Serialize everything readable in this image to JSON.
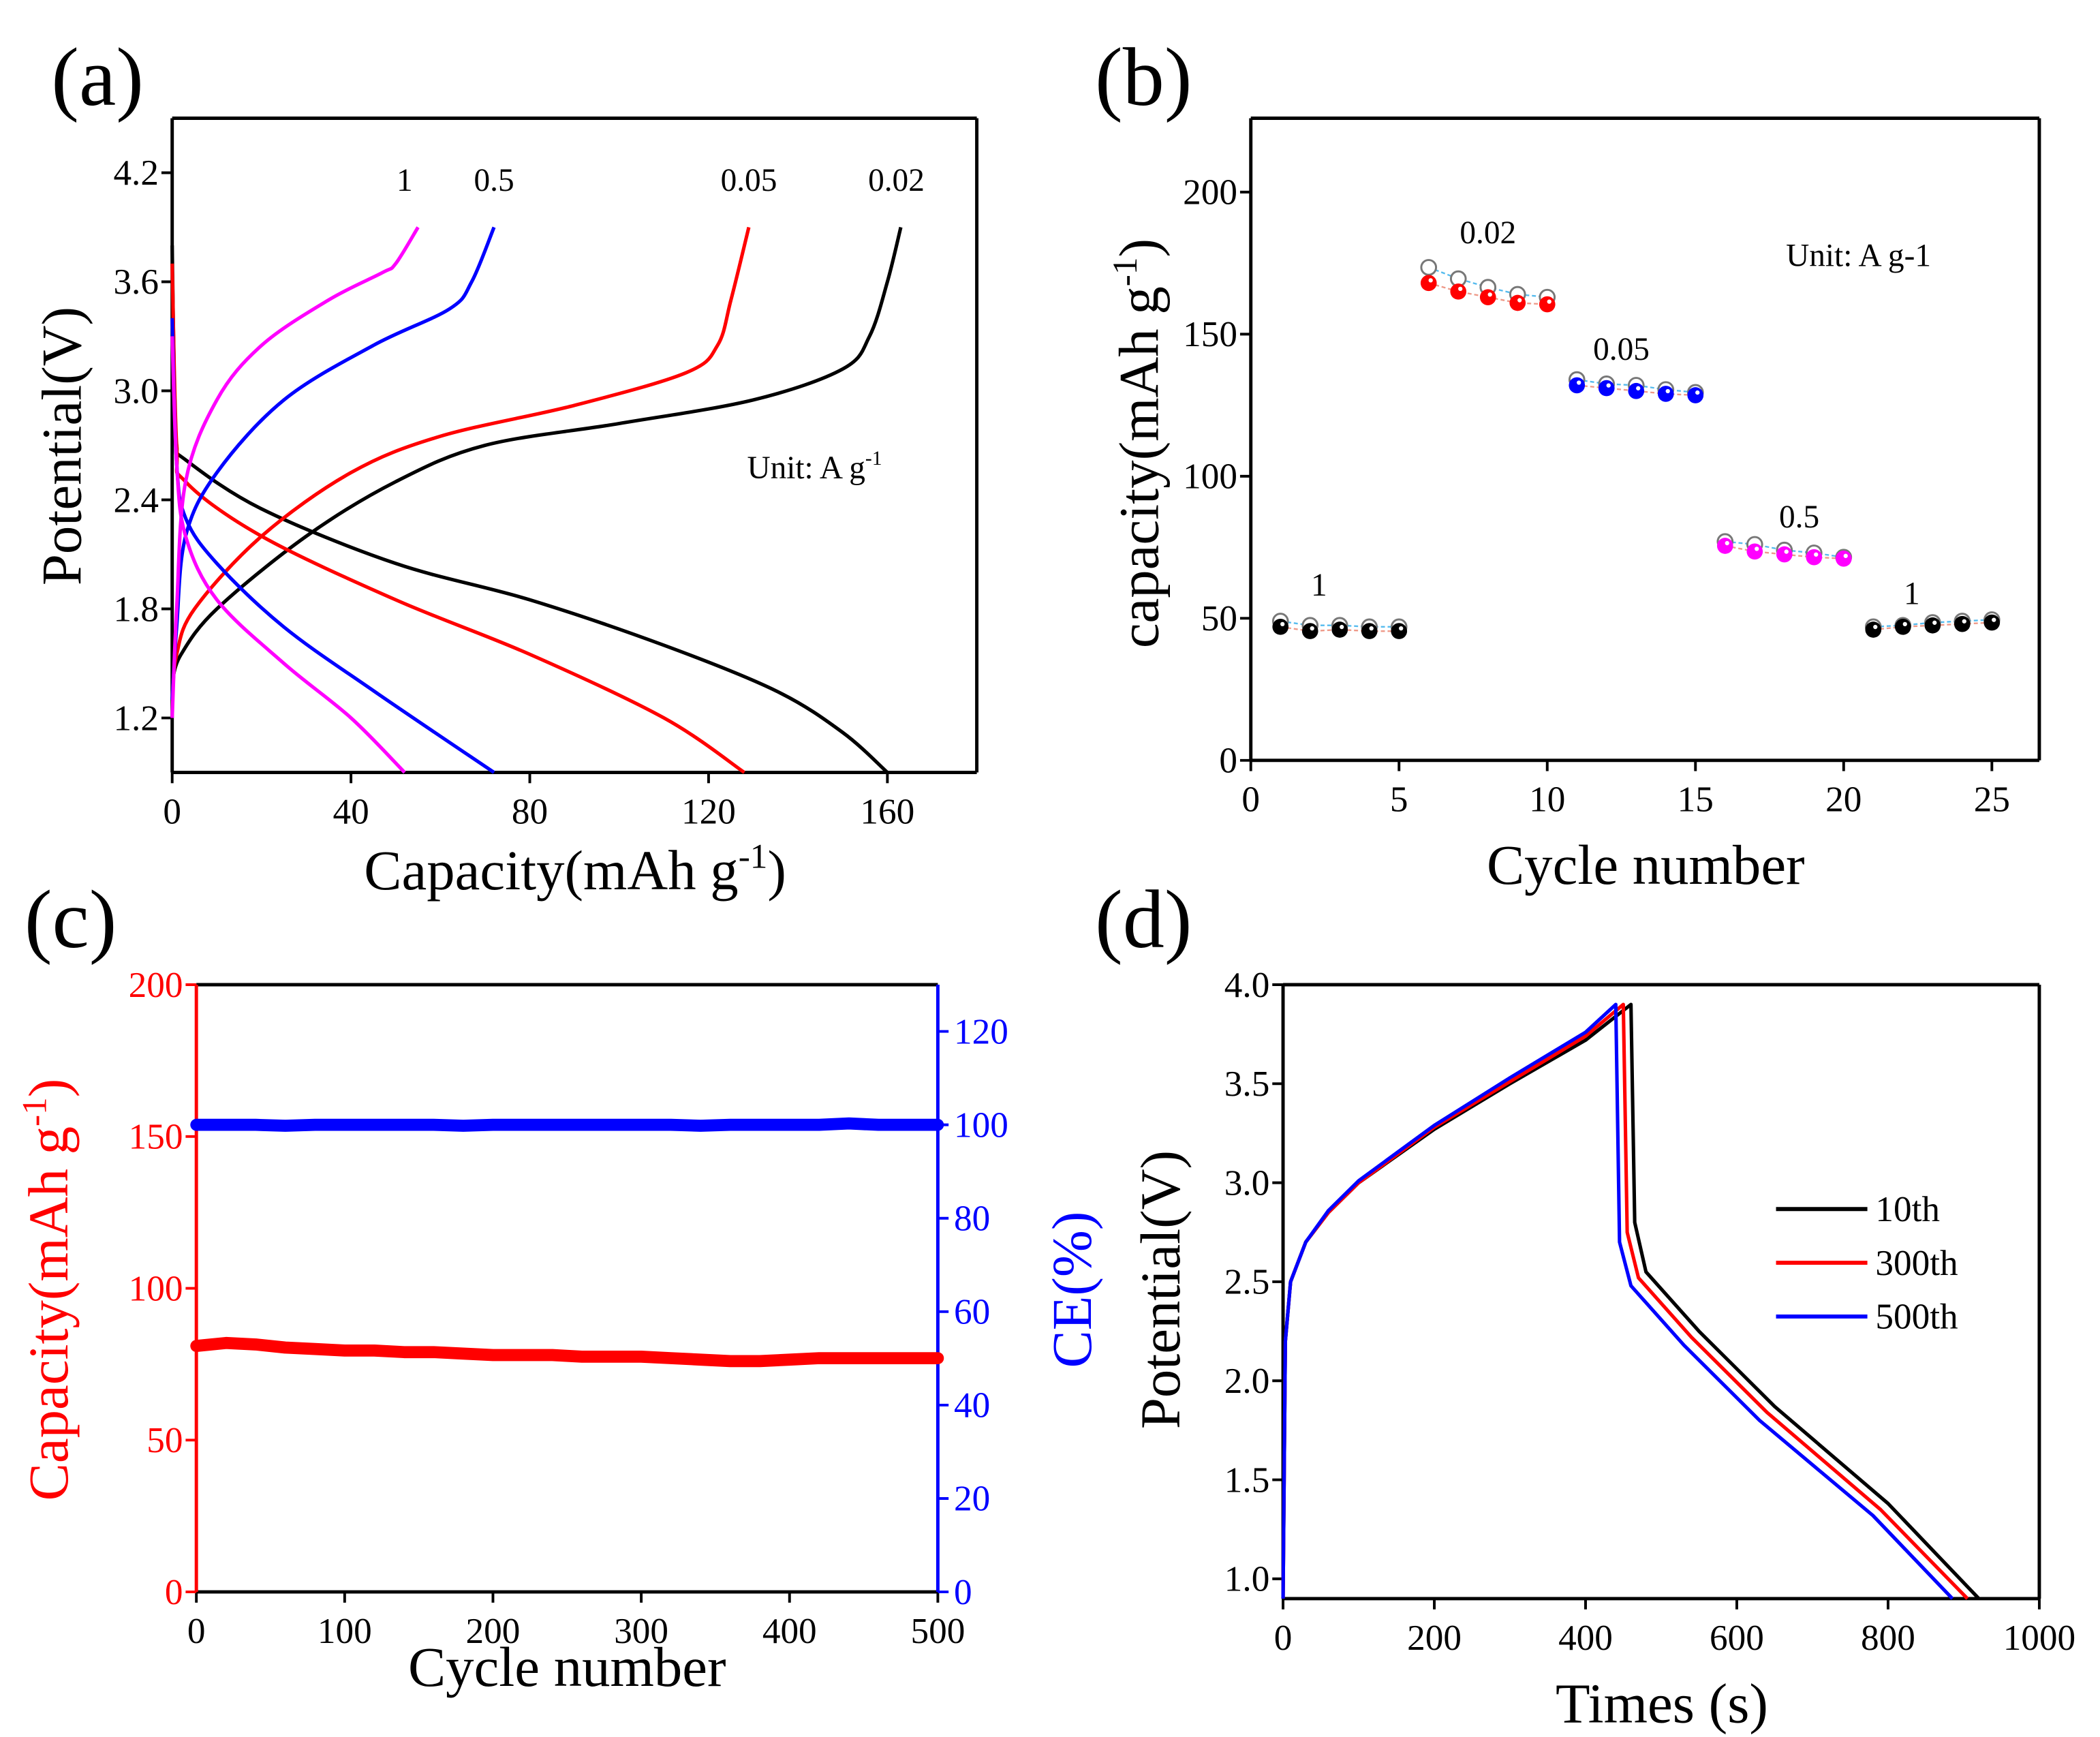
{
  "chart_data": [
    {
      "panel": "(a)",
      "type": "line",
      "xlabel": "Capacity(mAh g",
      "xlabel_sup": "-1",
      "xlabel_end": ")",
      "ylabel": "Potential(V)",
      "xlim": [
        0,
        180
      ],
      "ylim": [
        0.9,
        4.5
      ],
      "xticks": [
        0,
        40,
        80,
        120,
        160
      ],
      "yticks": [
        1.2,
        1.8,
        2.4,
        3.0,
        3.6,
        4.2
      ],
      "ytick_labels": [
        "1.2",
        "1.8",
        "2.4",
        "3.0",
        "3.6",
        "4.2"
      ],
      "annotation": "Unit: A g",
      "annotation_sup": "-1",
      "series": [
        {
          "name": "0.02",
          "color": "#000000",
          "label_pos": [
            162,
            4.1
          ],
          "charge": [
            [
              0,
              1.4
            ],
            [
              2,
              1.55
            ],
            [
              10,
              1.8
            ],
            [
              30,
              2.2
            ],
            [
              50,
              2.5
            ],
            [
              70,
              2.7
            ],
            [
              100,
              2.82
            ],
            [
              130,
              2.95
            ],
            [
              150,
              3.12
            ],
            [
              156,
              3.3
            ],
            [
              160,
              3.6
            ],
            [
              163,
              3.9
            ]
          ],
          "discharge": [
            [
              0,
              3.8
            ],
            [
              0.5,
              3.0
            ],
            [
              1,
              2.7
            ],
            [
              3,
              2.62
            ],
            [
              20,
              2.35
            ],
            [
              50,
              2.05
            ],
            [
              80,
              1.85
            ],
            [
              110,
              1.6
            ],
            [
              135,
              1.35
            ],
            [
              150,
              1.12
            ],
            [
              160,
              0.9
            ]
          ]
        },
        {
          "name": "0.05",
          "color": "#ff0000",
          "label_pos": [
            129,
            4.1
          ],
          "charge": [
            [
              0,
              1.3
            ],
            [
              1,
              1.55
            ],
            [
              5,
              1.8
            ],
            [
              20,
              2.2
            ],
            [
              40,
              2.55
            ],
            [
              60,
              2.75
            ],
            [
              90,
              2.92
            ],
            [
              115,
              3.1
            ],
            [
              122,
              3.25
            ],
            [
              125,
              3.5
            ],
            [
              129,
              3.9
            ]
          ],
          "discharge": [
            [
              0,
              3.7
            ],
            [
              1,
              2.7
            ],
            [
              3,
              2.5
            ],
            [
              20,
              2.2
            ],
            [
              50,
              1.85
            ],
            [
              80,
              1.55
            ],
            [
              110,
              1.2
            ],
            [
              128,
              0.9
            ]
          ]
        },
        {
          "name": "0.5",
          "color": "#0000ff",
          "label_pos": [
            72,
            4.1
          ],
          "charge": [
            [
              0,
              1.3
            ],
            [
              1,
              1.7
            ],
            [
              3,
              2.2
            ],
            [
              10,
              2.55
            ],
            [
              25,
              2.95
            ],
            [
              45,
              3.25
            ],
            [
              62,
              3.45
            ],
            [
              67,
              3.6
            ],
            [
              72,
              3.9
            ]
          ],
          "discharge": [
            [
              0,
              3.4
            ],
            [
              1,
              2.6
            ],
            [
              3,
              2.3
            ],
            [
              10,
              2.05
            ],
            [
              25,
              1.7
            ],
            [
              45,
              1.35
            ],
            [
              72,
              0.9
            ]
          ]
        },
        {
          "name": "1",
          "color": "#ff00ff",
          "label_pos": [
            52,
            4.1
          ],
          "charge": [
            [
              0,
              1.2
            ],
            [
              1,
              1.8
            ],
            [
              3,
              2.5
            ],
            [
              10,
              2.95
            ],
            [
              20,
              3.25
            ],
            [
              35,
              3.5
            ],
            [
              47,
              3.65
            ],
            [
              50,
              3.7
            ],
            [
              55,
              3.9
            ]
          ],
          "discharge": [
            [
              0,
              3.3
            ],
            [
              1,
              2.6
            ],
            [
              3,
              2.2
            ],
            [
              10,
              1.85
            ],
            [
              25,
              1.5
            ],
            [
              40,
              1.2
            ],
            [
              52,
              0.9
            ]
          ]
        }
      ]
    },
    {
      "panel": "(b)",
      "type": "scatter",
      "xlabel": "Cycle number",
      "ylabel": "capacity(mAh g",
      "ylabel_sup": "-1",
      "ylabel_end": ")",
      "xlim": [
        0,
        26.6
      ],
      "ylim": [
        0,
        226
      ],
      "xticks": [
        0,
        5,
        10,
        15,
        20,
        25
      ],
      "yticks": [
        0,
        50,
        100,
        150,
        200
      ],
      "annotation": "Unit: A g-1",
      "groups": [
        {
          "label": "1",
          "color": "#000000",
          "label_pos": [
            2.3,
            58
          ],
          "cycles": [
            1,
            2,
            3,
            4,
            5
          ],
          "charge": [
            47,
            45.5,
            46,
            45.5,
            45.5
          ],
          "discharge": [
            49,
            47.5,
            47.5,
            47,
            47
          ]
        },
        {
          "label": "0.02",
          "color": "#ff0000",
          "label_pos": [
            8,
            182
          ],
          "cycles": [
            6,
            7,
            8,
            9,
            10
          ],
          "charge": [
            168,
            165,
            163,
            161,
            160.5
          ],
          "discharge": [
            173.5,
            169.5,
            166.5,
            164,
            163
          ]
        },
        {
          "label": "0.05",
          "color": "#0000ff",
          "label_pos": [
            12.5,
            141
          ],
          "cycles": [
            11,
            12,
            13,
            14,
            15
          ],
          "charge": [
            132,
            131,
            130,
            129,
            128.5
          ],
          "discharge": [
            134,
            132.5,
            132,
            130.5,
            129.5
          ]
        },
        {
          "label": "0.5",
          "color": "#ff00ff",
          "label_pos": [
            18.5,
            82
          ],
          "cycles": [
            16,
            17,
            18,
            19,
            20
          ],
          "charge": [
            75.5,
            73.5,
            72.5,
            71.5,
            71
          ],
          "discharge": [
            77,
            76,
            74,
            73,
            71.5
          ]
        },
        {
          "label": "1",
          "color": "#000000",
          "label_pos": [
            22.3,
            55
          ],
          "cycles": [
            21,
            22,
            23,
            24,
            25
          ],
          "charge": [
            46,
            47,
            47.5,
            48,
            48.5
          ],
          "discharge": [
            47,
            47.5,
            48.5,
            49,
            49.5
          ]
        }
      ]
    },
    {
      "panel": "(c)",
      "type": "scatter",
      "xlabel": "Cycle number",
      "ylabel": "Capacity(mAh g",
      "ylabel_sup": "-1",
      "ylabel_end": ")",
      "y2label": "CE(%)",
      "xlim": [
        0,
        500
      ],
      "ylim": [
        0,
        200
      ],
      "y2lim": [
        0,
        130
      ],
      "xticks": [
        0,
        100,
        200,
        300,
        400,
        500
      ],
      "yticks": [
        0,
        50,
        100,
        150,
        200
      ],
      "y2ticks": [
        0,
        20,
        40,
        60,
        80,
        100,
        120
      ],
      "left_color": "#ff0000",
      "right_color": "#0000ff",
      "x": [
        0,
        20,
        40,
        60,
        80,
        100,
        120,
        140,
        160,
        180,
        200,
        220,
        240,
        260,
        280,
        300,
        320,
        340,
        360,
        380,
        400,
        420,
        440,
        460,
        480,
        500
      ],
      "series": [
        {
          "name": "Capacity",
          "axis": "left",
          "color": "#ff0000",
          "values": [
            81,
            82,
            81.5,
            80.5,
            80,
            79.5,
            79.5,
            79,
            79,
            78.5,
            78,
            78,
            78,
            77.5,
            77.5,
            77.5,
            77,
            76.5,
            76,
            76,
            76.5,
            77,
            77,
            77,
            77,
            77
          ]
        },
        {
          "name": "CE",
          "axis": "right",
          "color": "#0000ff",
          "values": [
            100,
            100,
            100,
            99.8,
            100,
            100,
            100,
            100,
            100,
            99.8,
            100,
            100,
            100,
            100,
            100,
            100,
            100,
            99.8,
            100,
            100,
            100,
            100,
            100.3,
            100,
            100,
            100
          ]
        }
      ]
    },
    {
      "panel": "(d)",
      "type": "line",
      "xlabel": "Times (s)",
      "ylabel": "Potential(V)",
      "xlim": [
        0,
        1000
      ],
      "ylim": [
        0.9,
        4.0
      ],
      "xticks": [
        0,
        200,
        400,
        600,
        800,
        1000
      ],
      "yticks": [
        1.0,
        1.5,
        2.0,
        2.5,
        3.0,
        3.5,
        4.0
      ],
      "ytick_labels": [
        "1.0",
        "1.5",
        "2.0",
        "2.5",
        "3.0",
        "3.5",
        "4.0"
      ],
      "legend_position": "center-right",
      "series": [
        {
          "name": "10th",
          "color": "#000000",
          "points": [
            [
              0,
              0.9
            ],
            [
              3,
              2.2
            ],
            [
              10,
              2.5
            ],
            [
              30,
              2.7
            ],
            [
              60,
              2.85
            ],
            [
              100,
              3.0
            ],
            [
              200,
              3.27
            ],
            [
              300,
              3.5
            ],
            [
              400,
              3.72
            ],
            [
              460,
              3.9
            ],
            [
              465,
              2.8
            ],
            [
              480,
              2.55
            ],
            [
              550,
              2.25
            ],
            [
              650,
              1.87
            ],
            [
              800,
              1.38
            ],
            [
              920,
              0.9
            ]
          ]
        },
        {
          "name": "300th",
          "color": "#ff0000",
          "points": [
            [
              0,
              0.9
            ],
            [
              3,
              2.2
            ],
            [
              10,
              2.5
            ],
            [
              30,
              2.7
            ],
            [
              60,
              2.85
            ],
            [
              100,
              3.0
            ],
            [
              200,
              3.28
            ],
            [
              300,
              3.51
            ],
            [
              400,
              3.74
            ],
            [
              450,
              3.9
            ],
            [
              455,
              2.75
            ],
            [
              470,
              2.52
            ],
            [
              540,
              2.22
            ],
            [
              640,
              1.84
            ],
            [
              790,
              1.35
            ],
            [
              905,
              0.9
            ]
          ]
        },
        {
          "name": "500th",
          "color": "#0000ff",
          "points": [
            [
              0,
              0.9
            ],
            [
              3,
              2.2
            ],
            [
              10,
              2.5
            ],
            [
              30,
              2.7
            ],
            [
              60,
              2.86
            ],
            [
              100,
              3.01
            ],
            [
              200,
              3.29
            ],
            [
              300,
              3.53
            ],
            [
              400,
              3.76
            ],
            [
              440,
              3.9
            ],
            [
              445,
              2.7
            ],
            [
              460,
              2.48
            ],
            [
              530,
              2.18
            ],
            [
              630,
              1.8
            ],
            [
              780,
              1.32
            ],
            [
              885,
              0.9
            ]
          ]
        }
      ]
    }
  ]
}
